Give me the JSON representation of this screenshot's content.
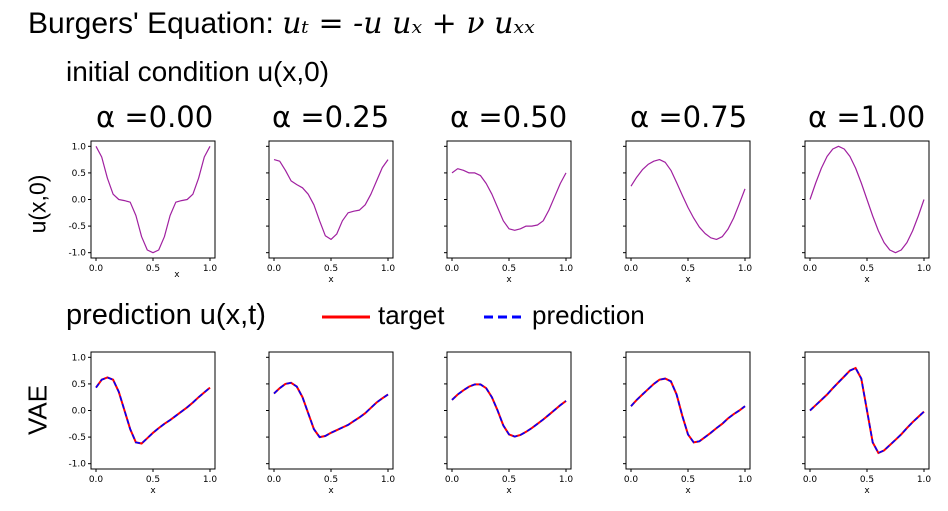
{
  "title": {
    "prefix": "Burgers' Equation:",
    "equation": "uₜ = -u uₓ + ν uₓₓ"
  },
  "row1_heading": "initial condition u(x,0)",
  "row2_heading": "prediction u(x,t)",
  "row1_ylabel": "u(x,0)",
  "row2_ylabel": "VAE",
  "alpha_labels": [
    "α =0.00",
    "α =0.25",
    "α =0.50",
    "α =0.75",
    "α =1.00"
  ],
  "legend": {
    "target": "target",
    "prediction": "prediction",
    "target_color": "#ff0000",
    "prediction_color": "#0000ff"
  },
  "initial_color": "#a020a0",
  "chart_data": [
    {
      "type": "line",
      "row": "initial condition",
      "xlabel": "x",
      "ylabel": "u(x,0)",
      "xlim": [
        0,
        1
      ],
      "ylim": [
        -1.1,
        1.1
      ],
      "xticks": [
        "0.0",
        "0.5",
        "1.0"
      ],
      "yticks": [
        "1.0",
        "0.5",
        "0.0",
        "-0.5",
        "-1.0"
      ],
      "panels": [
        {
          "title": "α =0.00",
          "x": [
            0,
            0.05,
            0.1,
            0.15,
            0.2,
            0.25,
            0.3,
            0.35,
            0.4,
            0.45,
            0.5,
            0.55,
            0.6,
            0.65,
            0.7,
            0.75,
            0.8,
            0.85,
            0.9,
            0.95,
            1.0
          ],
          "y": [
            1.0,
            0.8,
            0.4,
            0.1,
            0.0,
            -0.02,
            -0.05,
            -0.3,
            -0.7,
            -0.95,
            -1.0,
            -0.95,
            -0.7,
            -0.3,
            -0.05,
            -0.02,
            0.0,
            0.1,
            0.4,
            0.8,
            1.0
          ]
        },
        {
          "title": "α =0.25",
          "x": [
            0,
            0.05,
            0.1,
            0.15,
            0.2,
            0.25,
            0.3,
            0.35,
            0.4,
            0.45,
            0.5,
            0.55,
            0.6,
            0.65,
            0.7,
            0.75,
            0.8,
            0.85,
            0.9,
            0.95,
            1.0
          ],
          "y": [
            0.75,
            0.72,
            0.55,
            0.35,
            0.28,
            0.22,
            0.1,
            -0.1,
            -0.4,
            -0.68,
            -0.75,
            -0.65,
            -0.4,
            -0.25,
            -0.22,
            -0.2,
            -0.1,
            0.1,
            0.35,
            0.6,
            0.75
          ]
        },
        {
          "title": "α =0.50",
          "x": [
            0,
            0.05,
            0.1,
            0.15,
            0.2,
            0.25,
            0.3,
            0.35,
            0.4,
            0.45,
            0.5,
            0.55,
            0.6,
            0.65,
            0.7,
            0.75,
            0.8,
            0.85,
            0.9,
            0.95,
            1.0
          ],
          "y": [
            0.5,
            0.58,
            0.55,
            0.5,
            0.5,
            0.45,
            0.3,
            0.1,
            -0.15,
            -0.4,
            -0.55,
            -0.58,
            -0.55,
            -0.5,
            -0.5,
            -0.48,
            -0.4,
            -0.2,
            0.05,
            0.3,
            0.5
          ]
        },
        {
          "title": "α =0.75",
          "x": [
            0,
            0.05,
            0.1,
            0.15,
            0.2,
            0.25,
            0.3,
            0.35,
            0.4,
            0.45,
            0.5,
            0.55,
            0.6,
            0.65,
            0.7,
            0.75,
            0.8,
            0.85,
            0.9,
            0.95,
            1.0
          ],
          "y": [
            0.25,
            0.42,
            0.56,
            0.66,
            0.72,
            0.75,
            0.7,
            0.55,
            0.32,
            0.08,
            -0.15,
            -0.35,
            -0.52,
            -0.64,
            -0.72,
            -0.75,
            -0.7,
            -0.56,
            -0.35,
            -0.08,
            0.2
          ]
        },
        {
          "title": "α =1.00",
          "x": [
            0,
            0.05,
            0.1,
            0.15,
            0.2,
            0.25,
            0.3,
            0.35,
            0.4,
            0.45,
            0.5,
            0.55,
            0.6,
            0.65,
            0.7,
            0.75,
            0.8,
            0.85,
            0.9,
            0.95,
            1.0
          ],
          "y": [
            0.0,
            0.31,
            0.59,
            0.81,
            0.95,
            1.0,
            0.95,
            0.81,
            0.59,
            0.31,
            0.0,
            -0.31,
            -0.59,
            -0.81,
            -0.95,
            -1.0,
            -0.95,
            -0.81,
            -0.59,
            -0.31,
            0.0
          ]
        }
      ]
    },
    {
      "type": "line",
      "row": "prediction",
      "xlabel": "x",
      "ylabel": "VAE",
      "xlim": [
        0,
        1
      ],
      "ylim": [
        -1.1,
        1.1
      ],
      "xticks": [
        "0.0",
        "0.5",
        "1.0"
      ],
      "yticks": [
        "1.0",
        "0.5",
        "0.0",
        "-0.5",
        "-1.0"
      ],
      "series_names": [
        "target",
        "prediction"
      ],
      "panels": [
        {
          "x": [
            0,
            0.05,
            0.1,
            0.15,
            0.2,
            0.25,
            0.3,
            0.35,
            0.4,
            0.45,
            0.5,
            0.55,
            0.6,
            0.65,
            0.7,
            0.75,
            0.8,
            0.85,
            0.9,
            0.95,
            1.0
          ],
          "target": [
            0.43,
            0.58,
            0.62,
            0.58,
            0.35,
            0.0,
            -0.35,
            -0.6,
            -0.62,
            -0.52,
            -0.42,
            -0.33,
            -0.25,
            -0.18,
            -0.1,
            -0.02,
            0.06,
            0.15,
            0.25,
            0.34,
            0.43
          ],
          "prediction": [
            0.43,
            0.58,
            0.62,
            0.58,
            0.35,
            0.0,
            -0.35,
            -0.6,
            -0.62,
            -0.52,
            -0.42,
            -0.33,
            -0.25,
            -0.18,
            -0.1,
            -0.02,
            0.06,
            0.15,
            0.25,
            0.34,
            0.43
          ]
        },
        {
          "x": [
            0,
            0.05,
            0.1,
            0.15,
            0.2,
            0.25,
            0.3,
            0.35,
            0.4,
            0.45,
            0.5,
            0.55,
            0.6,
            0.65,
            0.7,
            0.75,
            0.8,
            0.85,
            0.9,
            0.95,
            1.0
          ],
          "target": [
            0.32,
            0.42,
            0.5,
            0.52,
            0.45,
            0.25,
            -0.05,
            -0.35,
            -0.5,
            -0.48,
            -0.42,
            -0.37,
            -0.32,
            -0.27,
            -0.2,
            -0.13,
            -0.05,
            0.05,
            0.15,
            0.23,
            0.3
          ],
          "prediction": [
            0.32,
            0.42,
            0.5,
            0.52,
            0.45,
            0.25,
            -0.05,
            -0.35,
            -0.5,
            -0.48,
            -0.42,
            -0.37,
            -0.32,
            -0.27,
            -0.2,
            -0.13,
            -0.05,
            0.05,
            0.15,
            0.23,
            0.3
          ]
        },
        {
          "x": [
            0,
            0.05,
            0.1,
            0.15,
            0.2,
            0.25,
            0.3,
            0.35,
            0.4,
            0.45,
            0.5,
            0.55,
            0.6,
            0.65,
            0.7,
            0.75,
            0.8,
            0.85,
            0.9,
            0.95,
            1.0
          ],
          "target": [
            0.2,
            0.3,
            0.38,
            0.45,
            0.49,
            0.49,
            0.42,
            0.25,
            0.0,
            -0.28,
            -0.45,
            -0.49,
            -0.46,
            -0.4,
            -0.33,
            -0.25,
            -0.17,
            -0.08,
            0.01,
            0.1,
            0.18
          ],
          "prediction": [
            0.2,
            0.3,
            0.38,
            0.45,
            0.49,
            0.49,
            0.42,
            0.25,
            0.0,
            -0.28,
            -0.45,
            -0.49,
            -0.46,
            -0.4,
            -0.33,
            -0.25,
            -0.17,
            -0.08,
            0.01,
            0.1,
            0.18
          ]
        },
        {
          "x": [
            0,
            0.05,
            0.1,
            0.15,
            0.2,
            0.25,
            0.3,
            0.35,
            0.4,
            0.45,
            0.5,
            0.55,
            0.6,
            0.65,
            0.7,
            0.75,
            0.8,
            0.85,
            0.9,
            0.95,
            1.0
          ],
          "target": [
            0.08,
            0.2,
            0.3,
            0.4,
            0.5,
            0.58,
            0.6,
            0.55,
            0.3,
            -0.1,
            -0.45,
            -0.6,
            -0.58,
            -0.5,
            -0.42,
            -0.33,
            -0.25,
            -0.15,
            -0.07,
            0.0,
            0.08
          ],
          "prediction": [
            0.08,
            0.2,
            0.3,
            0.4,
            0.5,
            0.58,
            0.6,
            0.55,
            0.3,
            -0.1,
            -0.45,
            -0.6,
            -0.58,
            -0.5,
            -0.42,
            -0.33,
            -0.25,
            -0.15,
            -0.07,
            0.0,
            0.08
          ]
        },
        {
          "x": [
            0,
            0.05,
            0.1,
            0.15,
            0.2,
            0.25,
            0.3,
            0.35,
            0.4,
            0.45,
            0.5,
            0.55,
            0.6,
            0.65,
            0.7,
            0.75,
            0.8,
            0.85,
            0.9,
            0.95,
            1.0
          ],
          "target": [
            0.0,
            0.1,
            0.2,
            0.3,
            0.42,
            0.53,
            0.64,
            0.75,
            0.8,
            0.6,
            0.0,
            -0.6,
            -0.8,
            -0.75,
            -0.65,
            -0.55,
            -0.45,
            -0.33,
            -0.22,
            -0.12,
            -0.02
          ],
          "prediction": [
            0.0,
            0.1,
            0.2,
            0.3,
            0.42,
            0.53,
            0.64,
            0.75,
            0.8,
            0.6,
            0.0,
            -0.6,
            -0.8,
            -0.75,
            -0.65,
            -0.55,
            -0.45,
            -0.33,
            -0.22,
            -0.12,
            -0.02
          ]
        }
      ]
    }
  ]
}
